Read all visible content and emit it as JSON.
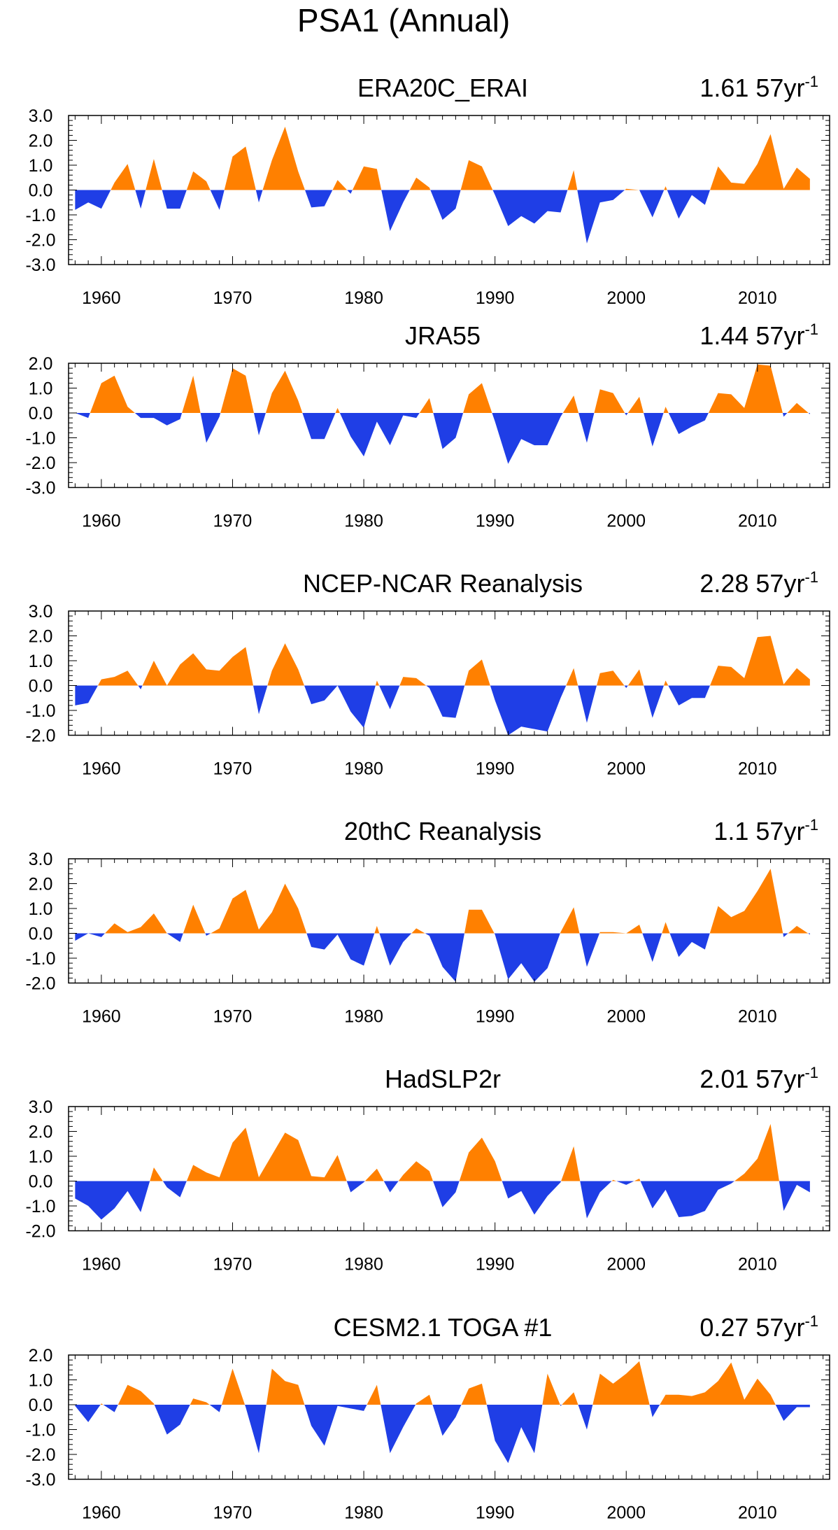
{
  "figure_title": "PSA1 (Annual)",
  "colors": {
    "positive": "#ff8000",
    "negative": "#1f3ee6",
    "axis": "#000000"
  },
  "chart_data": [
    {
      "type": "area",
      "title": "ERA20C_ERAI",
      "trend_value": "1.61",
      "trend_unit_base": "57yr",
      "trend_unit_exp": "-1",
      "xlim": [
        1958,
        2014
      ],
      "ylim": [
        -3,
        3
      ],
      "yticks": [
        "3.0",
        "2.0",
        "1.0",
        "0.0",
        "-1.0",
        "-2.0",
        "-3.0"
      ],
      "yticks_values": [
        3,
        2,
        1,
        0,
        -1,
        -2,
        -3
      ],
      "xticks": [
        "1960",
        "1970",
        "1980",
        "1990",
        "2000",
        "2010"
      ],
      "xticks_values": [
        1960,
        1970,
        1980,
        1990,
        2000,
        2010
      ],
      "x": [
        1958,
        1959,
        1960,
        1961,
        1962,
        1963,
        1964,
        1965,
        1966,
        1967,
        1968,
        1969,
        1970,
        1971,
        1972,
        1973,
        1974,
        1975,
        1976,
        1977,
        1978,
        1979,
        1980,
        1981,
        1982,
        1983,
        1984,
        1985,
        1986,
        1987,
        1988,
        1989,
        1990,
        1991,
        1992,
        1993,
        1994,
        1995,
        1996,
        1997,
        1998,
        1999,
        2000,
        2001,
        2002,
        2003,
        2004,
        2005,
        2006,
        2007,
        2008,
        2009,
        2010,
        2011,
        2012,
        2013,
        2014
      ],
      "values": [
        -0.8,
        -0.5,
        -0.75,
        0.3,
        1.05,
        -0.75,
        1.25,
        -0.75,
        -0.75,
        0.75,
        0.35,
        -0.8,
        1.35,
        1.75,
        -0.5,
        1.2,
        2.55,
        0.75,
        -0.7,
        -0.65,
        0.4,
        -0.15,
        0.95,
        0.85,
        -1.65,
        -0.5,
        0.5,
        0.1,
        -1.2,
        -0.75,
        1.2,
        0.95,
        -0.2,
        -1.45,
        -1.05,
        -1.35,
        -0.85,
        -0.9,
        0.8,
        -2.15,
        -0.5,
        -0.4,
        0.05,
        0.0,
        -1.1,
        0.15,
        -1.15,
        -0.2,
        -0.6,
        0.95,
        0.3,
        0.25,
        1.05,
        2.25,
        0.05,
        0.9,
        0.45
      ]
    },
    {
      "type": "area",
      "title": "JRA55",
      "trend_value": "1.44",
      "trend_unit_base": "57yr",
      "trend_unit_exp": "-1",
      "xlim": [
        1958,
        2014
      ],
      "ylim": [
        -3,
        2
      ],
      "yticks": [
        "2.0",
        "1.0",
        "0.0",
        "-1.0",
        "-2.0",
        "-3.0"
      ],
      "yticks_values": [
        2,
        1,
        0,
        -1,
        -2,
        -3
      ],
      "xticks": [
        "1960",
        "1970",
        "1980",
        "1990",
        "2000",
        "2010"
      ],
      "xticks_values": [
        1960,
        1970,
        1980,
        1990,
        2000,
        2010
      ],
      "x": [
        1958,
        1959,
        1960,
        1961,
        1962,
        1963,
        1964,
        1965,
        1966,
        1967,
        1968,
        1969,
        1970,
        1971,
        1972,
        1973,
        1974,
        1975,
        1976,
        1977,
        1978,
        1979,
        1980,
        1981,
        1982,
        1983,
        1984,
        1985,
        1986,
        1987,
        1988,
        1989,
        1990,
        1991,
        1992,
        1993,
        1994,
        1995,
        1996,
        1997,
        1998,
        1999,
        2000,
        2001,
        2002,
        2003,
        2004,
        2005,
        2006,
        2007,
        2008,
        2009,
        2010,
        2011,
        2012,
        2013,
        2014
      ],
      "values": [
        0.0,
        -0.2,
        1.2,
        1.5,
        0.25,
        -0.2,
        -0.2,
        -0.5,
        -0.25,
        1.5,
        -1.2,
        -0.15,
        1.8,
        1.5,
        -0.9,
        0.8,
        1.7,
        0.5,
        -1.05,
        -1.05,
        0.2,
        -0.95,
        -1.75,
        -0.35,
        -1.3,
        -0.1,
        -0.2,
        0.6,
        -1.45,
        -1.0,
        0.75,
        1.2,
        -0.35,
        -2.05,
        -1.05,
        -1.3,
        -1.3,
        -0.15,
        0.7,
        -1.2,
        0.95,
        0.8,
        -0.1,
        0.65,
        -1.35,
        0.25,
        -0.85,
        -0.55,
        -0.3,
        0.8,
        0.75,
        0.2,
        1.95,
        1.9,
        -0.15,
        0.4,
        -0.05
      ]
    },
    {
      "type": "area",
      "title": "NCEP-NCAR Reanalysis",
      "trend_value": "2.28",
      "trend_unit_base": "57yr",
      "trend_unit_exp": "-1",
      "xlim": [
        1958,
        2014
      ],
      "ylim": [
        -2,
        3
      ],
      "yticks": [
        "3.0",
        "2.0",
        "1.0",
        "0.0",
        "-1.0",
        "-2.0"
      ],
      "yticks_values": [
        3,
        2,
        1,
        0,
        -1,
        -2
      ],
      "xticks": [
        "1960",
        "1970",
        "1980",
        "1990",
        "2000",
        "2010"
      ],
      "xticks_values": [
        1960,
        1970,
        1980,
        1990,
        2000,
        2010
      ],
      "x": [
        1958,
        1959,
        1960,
        1961,
        1962,
        1963,
        1964,
        1965,
        1966,
        1967,
        1968,
        1969,
        1970,
        1971,
        1972,
        1973,
        1974,
        1975,
        1976,
        1977,
        1978,
        1979,
        1980,
        1981,
        1982,
        1983,
        1984,
        1985,
        1986,
        1987,
        1988,
        1989,
        1990,
        1991,
        1992,
        1993,
        1994,
        1995,
        1996,
        1997,
        1998,
        1999,
        2000,
        2001,
        2002,
        2003,
        2004,
        2005,
        2006,
        2007,
        2008,
        2009,
        2010,
        2011,
        2012,
        2013,
        2014
      ],
      "values": [
        -0.8,
        -0.7,
        0.25,
        0.35,
        0.6,
        -0.15,
        1.0,
        0.0,
        0.85,
        1.3,
        0.65,
        0.6,
        1.15,
        1.55,
        -1.15,
        0.6,
        1.7,
        0.65,
        -0.75,
        -0.6,
        0.0,
        -1.05,
        -1.7,
        0.2,
        -0.95,
        0.35,
        0.3,
        -0.1,
        -1.25,
        -1.3,
        0.6,
        1.05,
        -0.6,
        -2.0,
        -1.65,
        -1.75,
        -1.85,
        -0.5,
        0.7,
        -1.5,
        0.5,
        0.6,
        -0.1,
        0.65,
        -1.3,
        0.2,
        -0.8,
        -0.5,
        -0.5,
        0.8,
        0.75,
        0.3,
        1.95,
        2.0,
        0.05,
        0.7,
        0.25
      ]
    },
    {
      "type": "area",
      "title": "20thC Reanalysis",
      "trend_value": "1.1",
      "trend_unit_base": "57yr",
      "trend_unit_exp": "-1",
      "xlim": [
        1958,
        2014
      ],
      "ylim": [
        -2,
        3
      ],
      "yticks": [
        "3.0",
        "2.0",
        "1.0",
        "0.0",
        "-1.0",
        "-2.0"
      ],
      "yticks_values": [
        3,
        2,
        1,
        0,
        -1,
        -2
      ],
      "xticks": [
        "1960",
        "1970",
        "1980",
        "1990",
        "2000",
        "2010"
      ],
      "xticks_values": [
        1960,
        1970,
        1980,
        1990,
        2000,
        2010
      ],
      "x": [
        1958,
        1959,
        1960,
        1961,
        1962,
        1963,
        1964,
        1965,
        1966,
        1967,
        1968,
        1969,
        1970,
        1971,
        1972,
        1973,
        1974,
        1975,
        1976,
        1977,
        1978,
        1979,
        1980,
        1981,
        1982,
        1983,
        1984,
        1985,
        1986,
        1987,
        1988,
        1989,
        1990,
        1991,
        1992,
        1993,
        1994,
        1995,
        1996,
        1997,
        1998,
        1999,
        2000,
        2001,
        2002,
        2003,
        2004,
        2005,
        2006,
        2007,
        2008,
        2009,
        2010,
        2011,
        2012,
        2013,
        2014
      ],
      "values": [
        -0.3,
        0.0,
        -0.15,
        0.4,
        0.05,
        0.25,
        0.8,
        0.0,
        -0.35,
        1.15,
        -0.1,
        0.2,
        1.4,
        1.75,
        0.15,
        0.85,
        2.0,
        1.0,
        -0.55,
        -0.65,
        -0.05,
        -1.05,
        -1.3,
        0.3,
        -1.3,
        -0.35,
        0.2,
        -0.1,
        -1.35,
        -1.95,
        0.95,
        0.95,
        -0.05,
        -1.85,
        -1.2,
        -1.95,
        -1.4,
        0.05,
        1.05,
        -1.35,
        0.05,
        0.05,
        0.0,
        0.35,
        -1.15,
        0.45,
        -0.95,
        -0.35,
        -0.65,
        1.1,
        0.65,
        0.9,
        1.7,
        2.6,
        -0.15,
        0.3,
        -0.05
      ]
    },
    {
      "type": "area",
      "title": "HadSLP2r",
      "trend_value": "2.01",
      "trend_unit_base": "57yr",
      "trend_unit_exp": "-1",
      "xlim": [
        1958,
        2014
      ],
      "ylim": [
        -2,
        3
      ],
      "yticks": [
        "3.0",
        "2.0",
        "1.0",
        "0.0",
        "-1.0",
        "-2.0"
      ],
      "yticks_values": [
        3,
        2,
        1,
        0,
        -1,
        -2
      ],
      "xticks": [
        "1960",
        "1970",
        "1980",
        "1990",
        "2000",
        "2010"
      ],
      "xticks_values": [
        1960,
        1970,
        1980,
        1990,
        2000,
        2010
      ],
      "x": [
        1958,
        1959,
        1960,
        1961,
        1962,
        1963,
        1964,
        1965,
        1966,
        1967,
        1968,
        1969,
        1970,
        1971,
        1972,
        1973,
        1974,
        1975,
        1976,
        1977,
        1978,
        1979,
        1980,
        1981,
        1982,
        1983,
        1984,
        1985,
        1986,
        1987,
        1988,
        1989,
        1990,
        1991,
        1992,
        1993,
        1994,
        1995,
        1996,
        1997,
        1998,
        1999,
        2000,
        2001,
        2002,
        2003,
        2004,
        2005,
        2006,
        2007,
        2008,
        2009,
        2010,
        2011,
        2012,
        2013,
        2014
      ],
      "values": [
        -0.7,
        -1.0,
        -1.55,
        -1.1,
        -0.4,
        -1.25,
        0.55,
        -0.25,
        -0.65,
        0.65,
        0.35,
        0.15,
        1.55,
        2.15,
        0.15,
        1.05,
        1.95,
        1.65,
        0.2,
        0.15,
        1.05,
        -0.45,
        -0.05,
        0.5,
        -0.45,
        0.25,
        0.8,
        0.4,
        -1.05,
        -0.45,
        1.15,
        1.75,
        0.8,
        -0.7,
        -0.4,
        -1.35,
        -0.6,
        -0.05,
        1.4,
        -1.5,
        -0.45,
        0.05,
        -0.15,
        0.1,
        -1.1,
        -0.35,
        -1.45,
        -1.4,
        -1.2,
        -0.35,
        -0.1,
        0.3,
        0.9,
        2.3,
        -1.2,
        -0.15,
        -0.45
      ]
    },
    {
      "type": "area",
      "title": "CESM2.1 TOGA #1",
      "trend_value": "0.27",
      "trend_unit_base": "57yr",
      "trend_unit_exp": "-1",
      "xlim": [
        1958,
        2014
      ],
      "ylim": [
        -3,
        2
      ],
      "yticks": [
        "2.0",
        "1.0",
        "0.0",
        "-1.0",
        "-2.0",
        "-3.0"
      ],
      "yticks_values": [
        2,
        1,
        0,
        -1,
        -2,
        -3
      ],
      "xticks": [
        "1960",
        "1970",
        "1980",
        "1990",
        "2000",
        "2010"
      ],
      "xticks_values": [
        1960,
        1970,
        1980,
        1990,
        2000,
        2010
      ],
      "x": [
        1958,
        1959,
        1960,
        1961,
        1962,
        1963,
        1964,
        1965,
        1966,
        1967,
        1968,
        1969,
        1970,
        1971,
        1972,
        1973,
        1974,
        1975,
        1976,
        1977,
        1978,
        1979,
        1980,
        1981,
        1982,
        1983,
        1984,
        1985,
        1986,
        1987,
        1988,
        1989,
        1990,
        1991,
        1992,
        1993,
        1994,
        1995,
        1996,
        1997,
        1998,
        1999,
        2000,
        2001,
        2002,
        2003,
        2004,
        2005,
        2006,
        2007,
        2008,
        2009,
        2010,
        2011,
        2012,
        2013,
        2014
      ],
      "values": [
        -0.05,
        -0.7,
        0.05,
        -0.3,
        0.8,
        0.55,
        0.05,
        -1.2,
        -0.8,
        0.25,
        0.1,
        -0.3,
        1.45,
        -0.1,
        -1.95,
        1.45,
        0.95,
        0.8,
        -0.85,
        -1.65,
        -0.05,
        -0.15,
        -0.25,
        0.8,
        -1.95,
        -0.9,
        0.05,
        0.4,
        -1.25,
        -0.5,
        0.65,
        0.85,
        -1.45,
        -2.35,
        -0.9,
        -1.95,
        1.25,
        -0.05,
        0.5,
        -1.0,
        1.25,
        0.85,
        1.25,
        1.75,
        -0.5,
        0.4,
        0.4,
        0.35,
        0.5,
        0.95,
        1.7,
        0.2,
        1.05,
        0.4,
        -0.65,
        -0.1,
        -0.1
      ]
    }
  ]
}
